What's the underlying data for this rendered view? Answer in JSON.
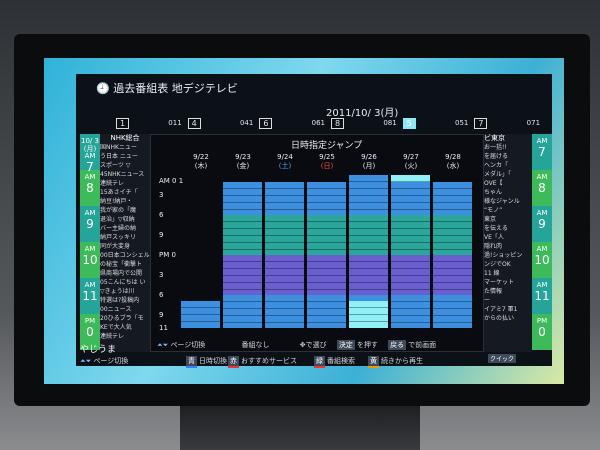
{
  "header": {
    "title": "過去番組表 地デジテレビ",
    "date": "2011/10/ 3(月)"
  },
  "channels": [
    {
      "button": "1",
      "code": "011"
    },
    {
      "button": "4",
      "code": "041"
    },
    {
      "button": "6",
      "code": "061"
    },
    {
      "button": "8",
      "code": "081"
    },
    {
      "button": "5",
      "code": "051",
      "selected": true
    },
    {
      "button": "7",
      "code": "071"
    }
  ],
  "left_times": [
    {
      "date": "10/ 3",
      "dow": "(月)",
      "ampm": "AM",
      "hour": "7"
    },
    {
      "ampm": "AM",
      "hour": "8"
    },
    {
      "ampm": "AM",
      "hour": "9"
    },
    {
      "ampm": "AM",
      "hour": "10"
    },
    {
      "ampm": "AM",
      "hour": "11"
    },
    {
      "ampm": "PM",
      "hour": "0"
    }
  ],
  "left_channel_name": "NHK総合",
  "left_programs": [
    "国NHKニュー",
    "う日本 ニュー",
    "スポーツ ▽",
    "45NHKニュース",
    "連続テレ",
    "15あさイチ「",
    "納豆!納戸・",
    "我が家の「魔",
    "退治」▽収納",
    "バー主婦の納",
    "納戸スッキリ",
    "同が大変身",
    "00日本コンシェル",
    "の秘宝「衝撃ト",
    "県商場内で公開",
    "05こんにちは い",
    "▽きょうは川",
    "特選は?投稿内",
    "00ニュース",
    "20ひるブラ「モ",
    "KEで大人気",
    "連続テレ"
  ],
  "right_channel_name": "ビ東京",
  "right_programs": [
    "お一括!!",
    "を届ける",
    "ヘンカ「",
    "メダル」「",
    "OVE【",
    "ちゃん",
    "様なジャンル",
    "“モノ”",
    "東京",
    "を伝える",
    "VE「人",
    "隠れ肉",
    "過!ショッピン",
    "ンジでOK",
    "11 線",
    "マーケット",
    "た情報",
    "ー",
    "イアミ7 軍1",
    "からの払い"
  ],
  "right_times": [
    {
      "ampm": "AM",
      "hour": "7"
    },
    {
      "ampm": "AM",
      "hour": "8"
    },
    {
      "ampm": "AM",
      "hour": "9"
    },
    {
      "ampm": "AM",
      "hour": "10"
    },
    {
      "ampm": "AM",
      "hour": "11"
    },
    {
      "ampm": "PM",
      "hour": "0"
    }
  ],
  "dialog": {
    "title": "日時指定ジャンプ",
    "hour_labels": [
      "AM 0 1",
      "3",
      "6",
      "9",
      "PM 0",
      "3",
      "6",
      "9",
      "11"
    ],
    "days": [
      {
        "date": "9/22",
        "dow": "(木)",
        "available_from_hour": 19
      },
      {
        "date": "9/23",
        "dow": "(金)",
        "available_from_hour": 1
      },
      {
        "date": "9/24",
        "dow": "(土)",
        "available_from_hour": 1,
        "color": "#4aa8ff"
      },
      {
        "date": "9/25",
        "dow": "(日)",
        "available_from_hour": 1,
        "color": "#ff5050"
      },
      {
        "date": "9/26",
        "dow": "(月)",
        "available_from_hour": 0,
        "selected_from_hour": 19
      },
      {
        "date": "9/27",
        "dow": "(火)",
        "available_from_hour": 0,
        "selected_hour": 0
      },
      {
        "date": "9/28",
        "dow": "(水)",
        "available_from_hour": 1
      }
    ],
    "footer": {
      "page": "ページ切換",
      "none": "番組なし",
      "select": "で選び",
      "enter_key": "決定",
      "enter": "を押す",
      "back_key": "戻る",
      "back": "で前画面"
    }
  },
  "bottom": {
    "page": "ページ切換",
    "blue_key": "青",
    "blue": "日時切換",
    "red_key": "赤",
    "red": "おすすめサービス",
    "green_key": "緑",
    "green": "番組検索",
    "yellow_key": "黄",
    "yellow": "続きから再生",
    "quick": "クイック",
    "left_program": "やじうま"
  },
  "colors": {
    "blue": "#3d8fe0",
    "teal": "#2aa79a",
    "purple": "#6a5fd0",
    "highlight": "#8ff0f8",
    "time_green": "#3dbb5a",
    "time_teal": "#25a59a"
  }
}
